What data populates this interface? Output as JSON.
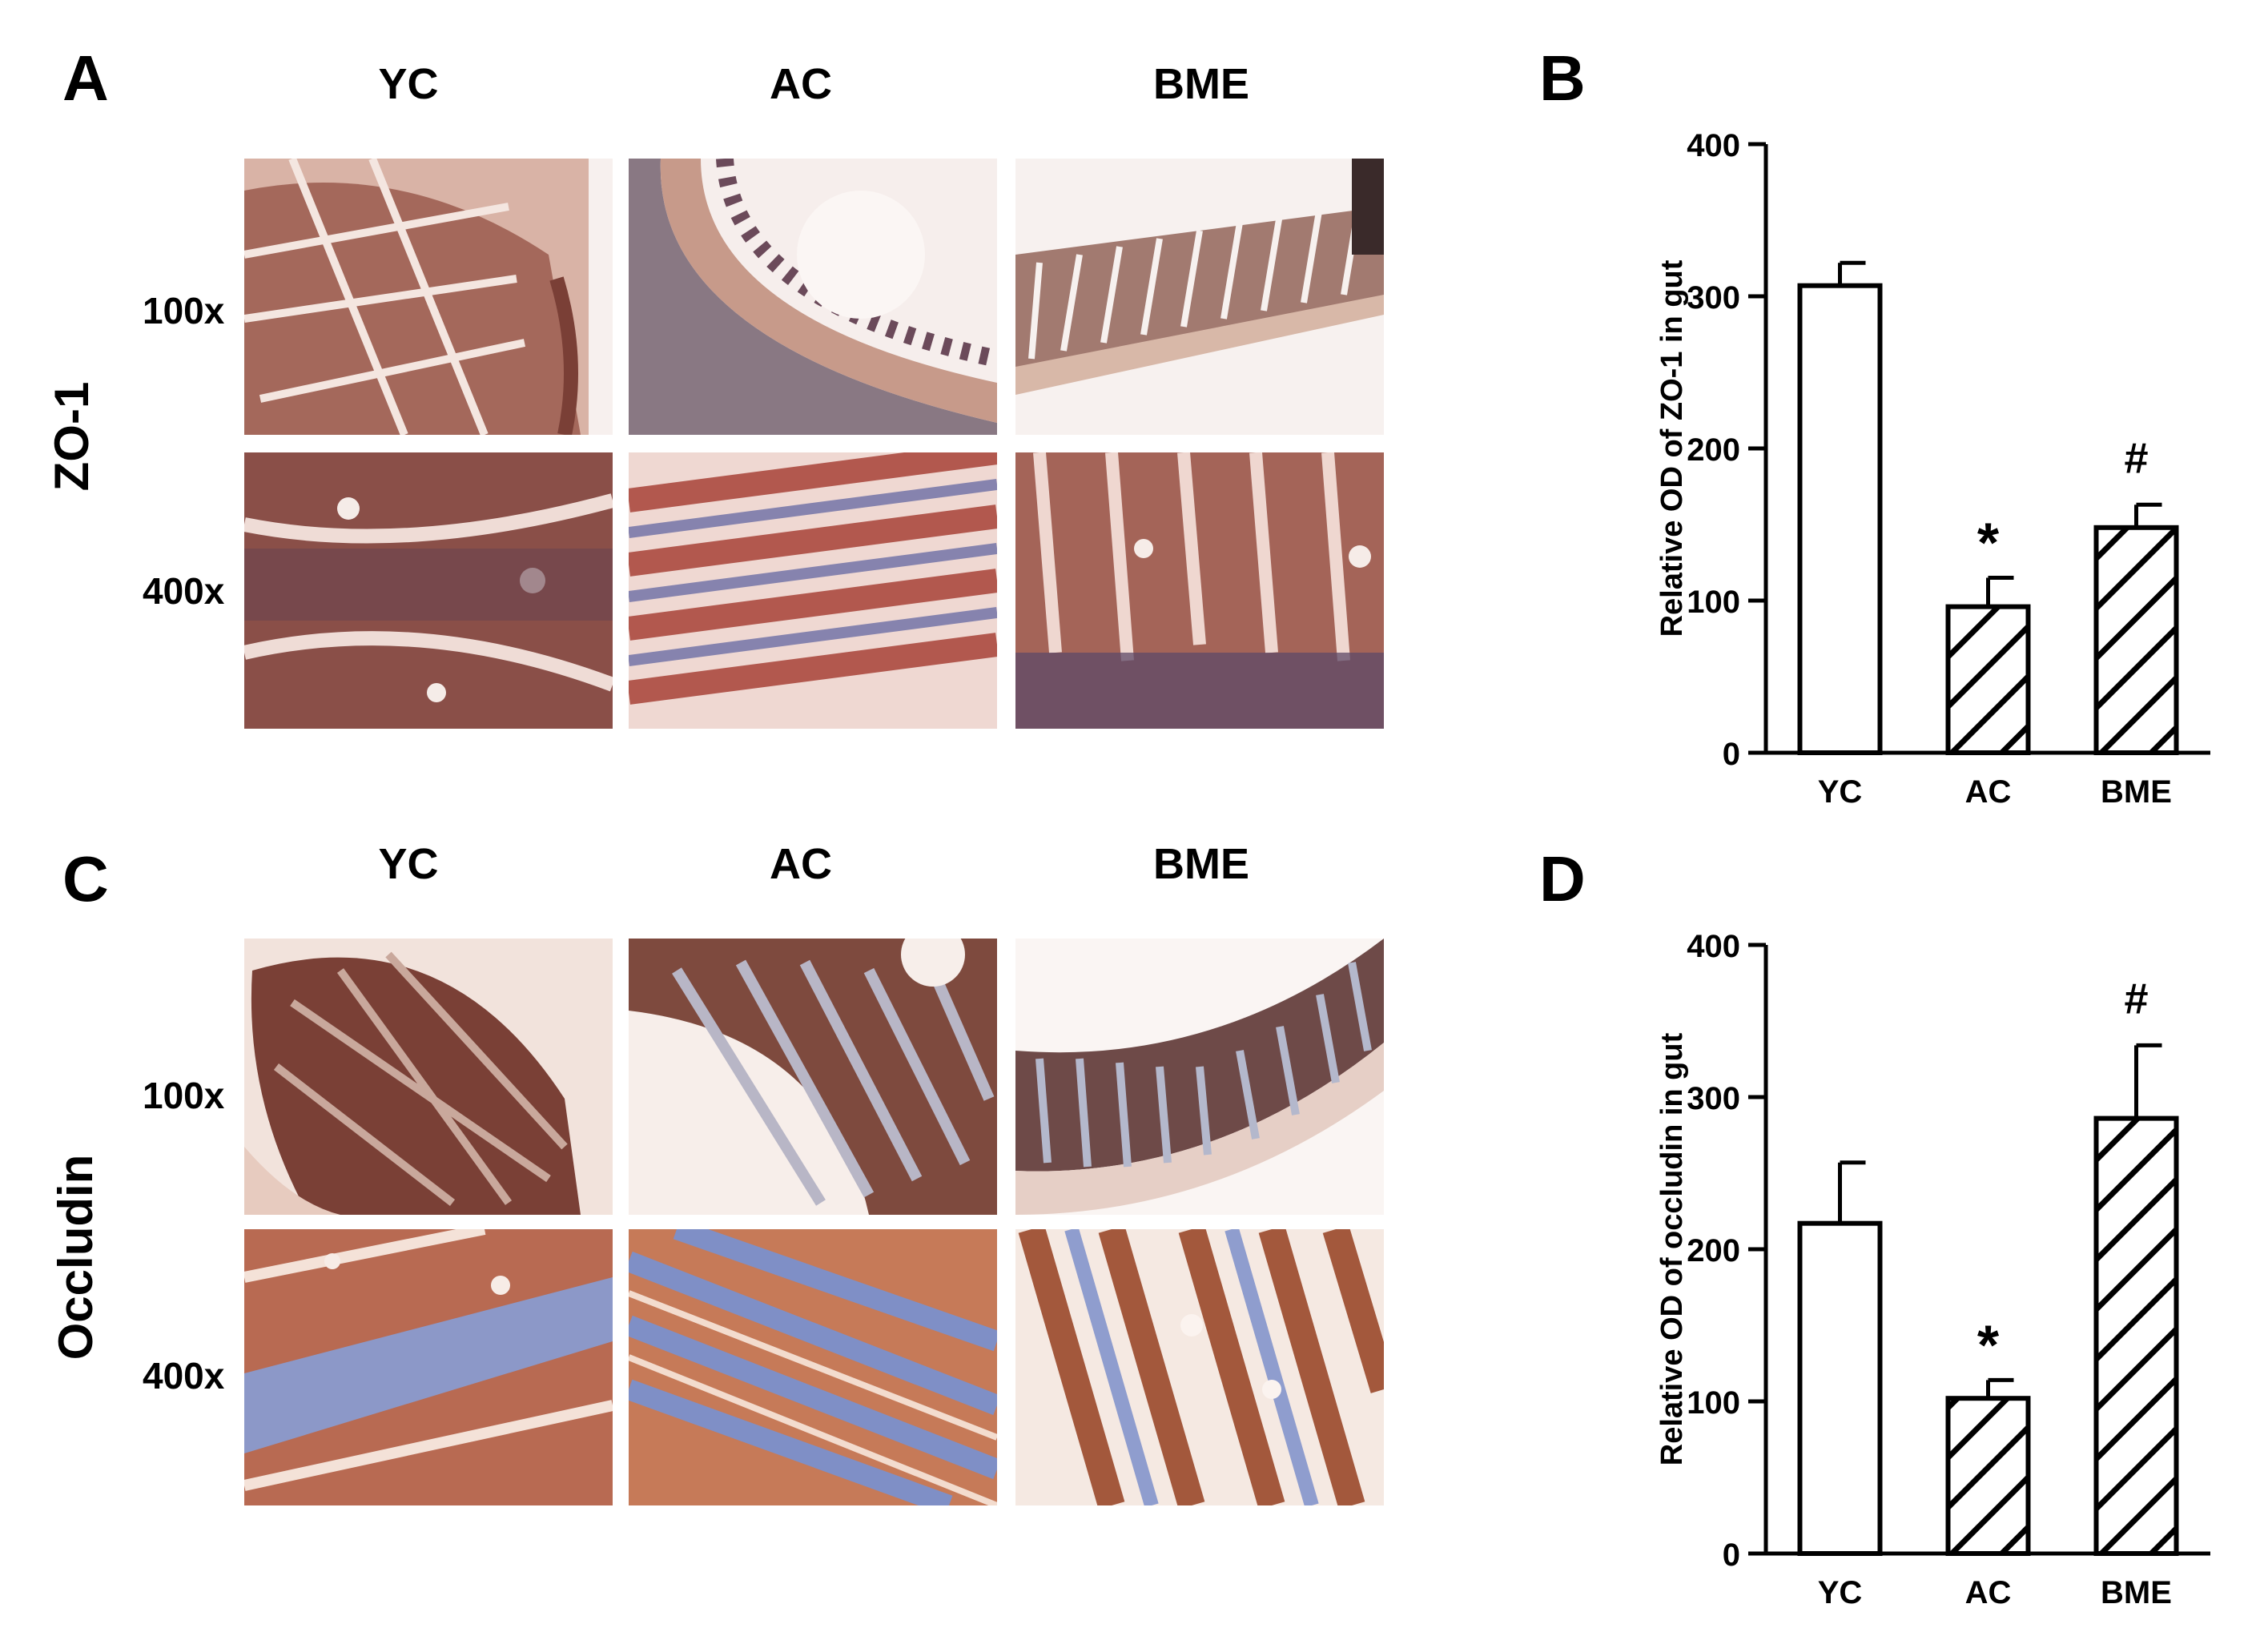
{
  "panels": [
    {
      "letter": "A",
      "columns": [
        "YC",
        "AC",
        "BME"
      ],
      "row_label": "ZO-1",
      "magnifications": [
        "100x",
        "400x"
      ]
    },
    {
      "letter": "C",
      "columns": [
        "YC",
        "AC",
        "BME"
      ],
      "row_label": "Occludin",
      "magnifications": [
        "100x",
        "400x"
      ]
    }
  ],
  "chart_data": [
    {
      "panel": "B",
      "type": "bar",
      "categories": [
        "YC",
        "AC",
        "BME"
      ],
      "values": [
        307,
        96,
        148
      ],
      "errors": [
        15,
        19,
        15
      ],
      "annotations": [
        "",
        "*",
        "#"
      ],
      "ylabel": "Relative OD of ZO-1 in gut",
      "xlabel": "",
      "ylim": [
        0,
        400
      ],
      "yticks": [
        0,
        100,
        200,
        300,
        400
      ],
      "fills": [
        "open",
        "hatched",
        "hatched"
      ]
    },
    {
      "panel": "D",
      "type": "bar",
      "categories": [
        "YC",
        "AC",
        "BME"
      ],
      "values": [
        217,
        102,
        286
      ],
      "errors": [
        40,
        12,
        48
      ],
      "annotations": [
        "",
        "*",
        "#"
      ],
      "ylabel": "Relative OD of occludin in gut",
      "xlabel": "",
      "ylim": [
        0,
        400
      ],
      "yticks": [
        0,
        100,
        200,
        300,
        400
      ],
      "fills": [
        "open",
        "hatched",
        "hatched"
      ]
    }
  ],
  "colors": {
    "bar_stroke": "#000000",
    "zo1_stain": "#9a5a4e",
    "occludin_stain": "#8a4a3a",
    "counterstain": "#6a7ab0"
  }
}
